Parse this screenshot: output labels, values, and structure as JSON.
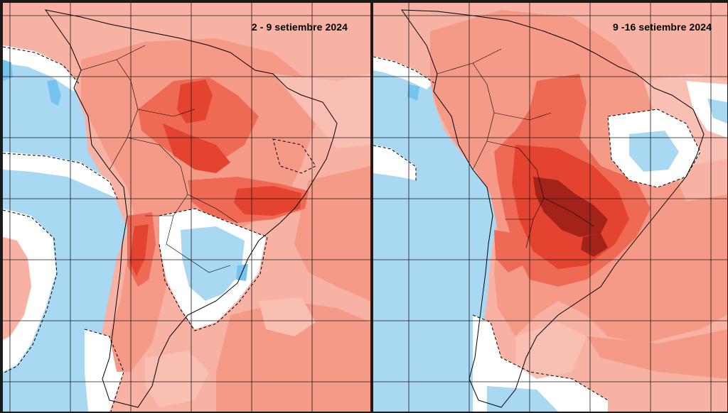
{
  "panels": [
    {
      "id": "left",
      "title": "2 - 9 setiembre 2024"
    },
    {
      "id": "right",
      "title": "9 -16 setiembre 2024"
    }
  ],
  "colors": {
    "ocean_cool": "#a9d8f2",
    "ocean_cold": "#76c3ee",
    "neutral": "#ffffff",
    "anomaly_weak": "#f9bfb3",
    "anomaly_moderate": "#f59a86",
    "anomaly_strong": "#ee6a55",
    "anomaly_very_strong": "#e4442f",
    "anomaly_extreme": "#a3231a",
    "grid_line": "#1a1a1a",
    "coastline": "#000000"
  }
}
